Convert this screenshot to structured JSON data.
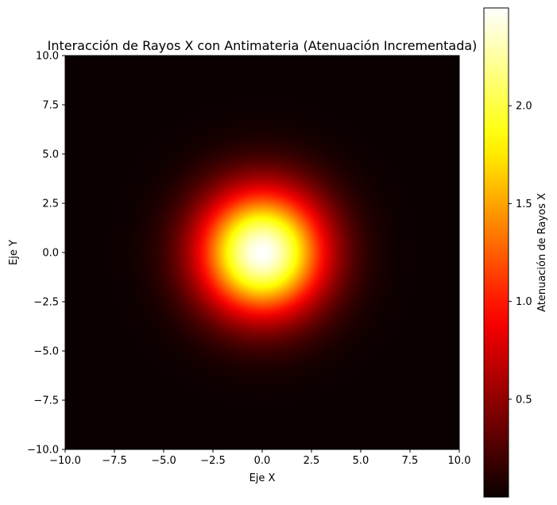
{
  "chart_data": {
    "type": "heatmap",
    "title": "Interacción de Rayos X con Antimateria (Atenuación Incrementada)",
    "xlabel": "Eje X",
    "ylabel": "Eje Y",
    "xlim": [
      -10,
      10
    ],
    "ylim": [
      -10,
      10
    ],
    "x_ticks": [
      -10,
      -7.5,
      -5,
      -2.5,
      0,
      2.5,
      5,
      7.5,
      10
    ],
    "x_tick_labels": [
      "−10.0",
      "−7.5",
      "−5.0",
      "−2.5",
      "0.0",
      "2.5",
      "5.0",
      "7.5",
      "10.0"
    ],
    "y_ticks": [
      10,
      7.5,
      5,
      2.5,
      0,
      -2.5,
      -5,
      -7.5,
      -10
    ],
    "y_tick_labels": [
      "10.0",
      "7.5",
      "5.0",
      "2.5",
      "0.0",
      "−2.5",
      "−5.0",
      "−7.5",
      "−10.0"
    ],
    "field": {
      "description": "Gaussian attenuation centered at origin",
      "center": [
        0,
        0
      ],
      "peak": 2.5,
      "sigma": 2.2
    },
    "colormap": "hot",
    "colorbar": {
      "label": "Atenuación de Rayos X",
      "range": [
        0,
        2.5
      ],
      "ticks": [
        0.5,
        1.0,
        1.5,
        2.0
      ],
      "tick_labels": [
        "0.5",
        "1.0",
        "1.5",
        "2.0"
      ]
    },
    "grid": false,
    "legend": "none"
  }
}
